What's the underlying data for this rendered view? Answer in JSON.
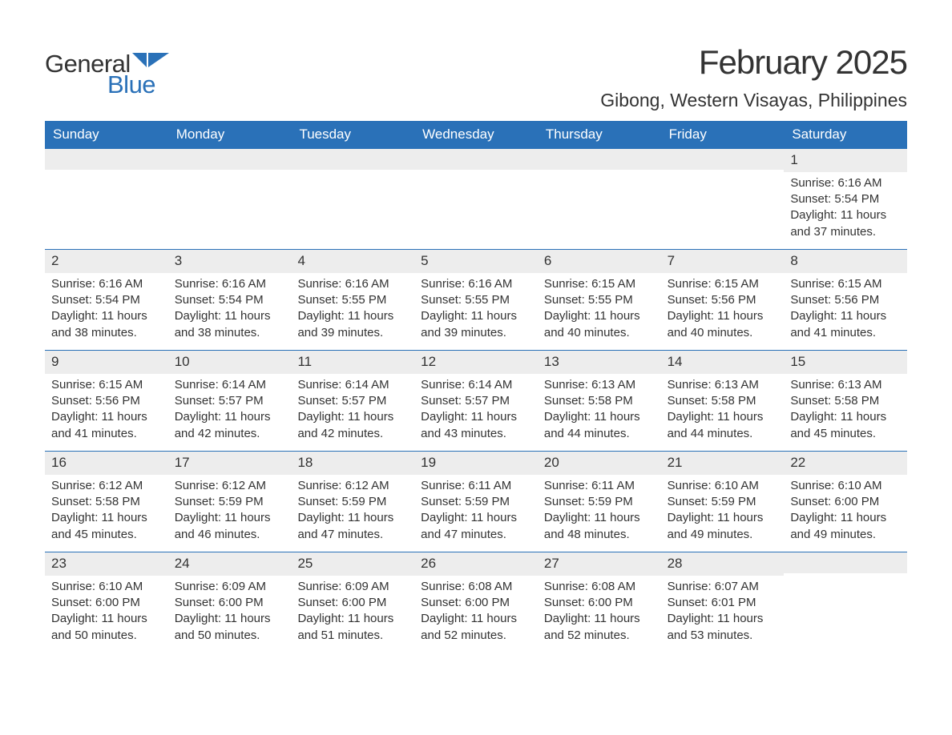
{
  "logo": {
    "general": "General",
    "blue": "Blue",
    "shape_color": "#2a71b8"
  },
  "header": {
    "month_title": "February 2025",
    "location": "Gibong, Western Visayas, Philippines"
  },
  "colors": {
    "header_bg": "#2a71b8",
    "header_text": "#ffffff",
    "daynum_bg": "#ededed",
    "text": "#333333",
    "page_bg": "#ffffff",
    "rule": "#2a71b8"
  },
  "typography": {
    "month_title_pt": 42,
    "location_pt": 23,
    "header_pt": 17,
    "daynum_pt": 17,
    "body_pt": 15,
    "family": "Arial"
  },
  "day_headers": [
    "Sunday",
    "Monday",
    "Tuesday",
    "Wednesday",
    "Thursday",
    "Friday",
    "Saturday"
  ],
  "labels": {
    "sunrise": "Sunrise:",
    "sunset": "Sunset:",
    "daylight": "Daylight:"
  },
  "weeks": [
    [
      {
        "empty": true
      },
      {
        "empty": true
      },
      {
        "empty": true
      },
      {
        "empty": true
      },
      {
        "empty": true
      },
      {
        "empty": true
      },
      {
        "num": "1",
        "sunrise": "6:16 AM",
        "sunset": "5:54 PM",
        "daylight_hours": "11 hours",
        "daylight_mins": "and 37 minutes."
      }
    ],
    [
      {
        "num": "2",
        "sunrise": "6:16 AM",
        "sunset": "5:54 PM",
        "daylight_hours": "11 hours",
        "daylight_mins": "and 38 minutes."
      },
      {
        "num": "3",
        "sunrise": "6:16 AM",
        "sunset": "5:54 PM",
        "daylight_hours": "11 hours",
        "daylight_mins": "and 38 minutes."
      },
      {
        "num": "4",
        "sunrise": "6:16 AM",
        "sunset": "5:55 PM",
        "daylight_hours": "11 hours",
        "daylight_mins": "and 39 minutes."
      },
      {
        "num": "5",
        "sunrise": "6:16 AM",
        "sunset": "5:55 PM",
        "daylight_hours": "11 hours",
        "daylight_mins": "and 39 minutes."
      },
      {
        "num": "6",
        "sunrise": "6:15 AM",
        "sunset": "5:55 PM",
        "daylight_hours": "11 hours",
        "daylight_mins": "and 40 minutes."
      },
      {
        "num": "7",
        "sunrise": "6:15 AM",
        "sunset": "5:56 PM",
        "daylight_hours": "11 hours",
        "daylight_mins": "and 40 minutes."
      },
      {
        "num": "8",
        "sunrise": "6:15 AM",
        "sunset": "5:56 PM",
        "daylight_hours": "11 hours",
        "daylight_mins": "and 41 minutes."
      }
    ],
    [
      {
        "num": "9",
        "sunrise": "6:15 AM",
        "sunset": "5:56 PM",
        "daylight_hours": "11 hours",
        "daylight_mins": "and 41 minutes."
      },
      {
        "num": "10",
        "sunrise": "6:14 AM",
        "sunset": "5:57 PM",
        "daylight_hours": "11 hours",
        "daylight_mins": "and 42 minutes."
      },
      {
        "num": "11",
        "sunrise": "6:14 AM",
        "sunset": "5:57 PM",
        "daylight_hours": "11 hours",
        "daylight_mins": "and 42 minutes."
      },
      {
        "num": "12",
        "sunrise": "6:14 AM",
        "sunset": "5:57 PM",
        "daylight_hours": "11 hours",
        "daylight_mins": "and 43 minutes."
      },
      {
        "num": "13",
        "sunrise": "6:13 AM",
        "sunset": "5:58 PM",
        "daylight_hours": "11 hours",
        "daylight_mins": "and 44 minutes."
      },
      {
        "num": "14",
        "sunrise": "6:13 AM",
        "sunset": "5:58 PM",
        "daylight_hours": "11 hours",
        "daylight_mins": "and 44 minutes."
      },
      {
        "num": "15",
        "sunrise": "6:13 AM",
        "sunset": "5:58 PM",
        "daylight_hours": "11 hours",
        "daylight_mins": "and 45 minutes."
      }
    ],
    [
      {
        "num": "16",
        "sunrise": "6:12 AM",
        "sunset": "5:58 PM",
        "daylight_hours": "11 hours",
        "daylight_mins": "and 45 minutes."
      },
      {
        "num": "17",
        "sunrise": "6:12 AM",
        "sunset": "5:59 PM",
        "daylight_hours": "11 hours",
        "daylight_mins": "and 46 minutes."
      },
      {
        "num": "18",
        "sunrise": "6:12 AM",
        "sunset": "5:59 PM",
        "daylight_hours": "11 hours",
        "daylight_mins": "and 47 minutes."
      },
      {
        "num": "19",
        "sunrise": "6:11 AM",
        "sunset": "5:59 PM",
        "daylight_hours": "11 hours",
        "daylight_mins": "and 47 minutes."
      },
      {
        "num": "20",
        "sunrise": "6:11 AM",
        "sunset": "5:59 PM",
        "daylight_hours": "11 hours",
        "daylight_mins": "and 48 minutes."
      },
      {
        "num": "21",
        "sunrise": "6:10 AM",
        "sunset": "5:59 PM",
        "daylight_hours": "11 hours",
        "daylight_mins": "and 49 minutes."
      },
      {
        "num": "22",
        "sunrise": "6:10 AM",
        "sunset": "6:00 PM",
        "daylight_hours": "11 hours",
        "daylight_mins": "and 49 minutes."
      }
    ],
    [
      {
        "num": "23",
        "sunrise": "6:10 AM",
        "sunset": "6:00 PM",
        "daylight_hours": "11 hours",
        "daylight_mins": "and 50 minutes."
      },
      {
        "num": "24",
        "sunrise": "6:09 AM",
        "sunset": "6:00 PM",
        "daylight_hours": "11 hours",
        "daylight_mins": "and 50 minutes."
      },
      {
        "num": "25",
        "sunrise": "6:09 AM",
        "sunset": "6:00 PM",
        "daylight_hours": "11 hours",
        "daylight_mins": "and 51 minutes."
      },
      {
        "num": "26",
        "sunrise": "6:08 AM",
        "sunset": "6:00 PM",
        "daylight_hours": "11 hours",
        "daylight_mins": "and 52 minutes."
      },
      {
        "num": "27",
        "sunrise": "6:08 AM",
        "sunset": "6:00 PM",
        "daylight_hours": "11 hours",
        "daylight_mins": "and 52 minutes."
      },
      {
        "num": "28",
        "sunrise": "6:07 AM",
        "sunset": "6:01 PM",
        "daylight_hours": "11 hours",
        "daylight_mins": "and 53 minutes."
      },
      {
        "empty": true
      }
    ]
  ]
}
